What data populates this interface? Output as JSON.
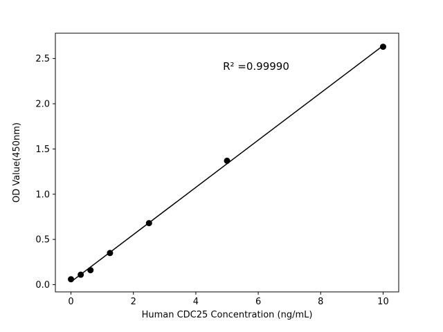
{
  "chart_data": {
    "type": "scatter",
    "title": "",
    "xlabel": "Human CDC25 Concentration (ng/mL)",
    "ylabel": "OD Value(450nm)",
    "x": [
      0,
      0.313,
      0.625,
      1.25,
      2.5,
      5,
      10
    ],
    "y": [
      0.06,
      0.11,
      0.16,
      0.35,
      0.68,
      1.37,
      2.63
    ],
    "fit_line": true,
    "annotation": "R² =0.99990",
    "xticks": [
      0,
      2,
      4,
      6,
      8,
      10
    ],
    "xtick_labels": [
      "0",
      "2",
      "4",
      "6",
      "8",
      "10"
    ],
    "yticks": [
      0.0,
      0.5,
      1.0,
      1.5,
      2.0,
      2.5
    ],
    "ytick_labels": [
      "0.0",
      "0.5",
      "1.0",
      "1.5",
      "2.0",
      "2.5"
    ],
    "xlim": [
      -0.5,
      10.5
    ],
    "ylim": [
      -0.08,
      2.78
    ],
    "grid": false,
    "legend": null,
    "marker_color": "#000000",
    "line_color": "#000000",
    "background_color": "#ffffff"
  }
}
